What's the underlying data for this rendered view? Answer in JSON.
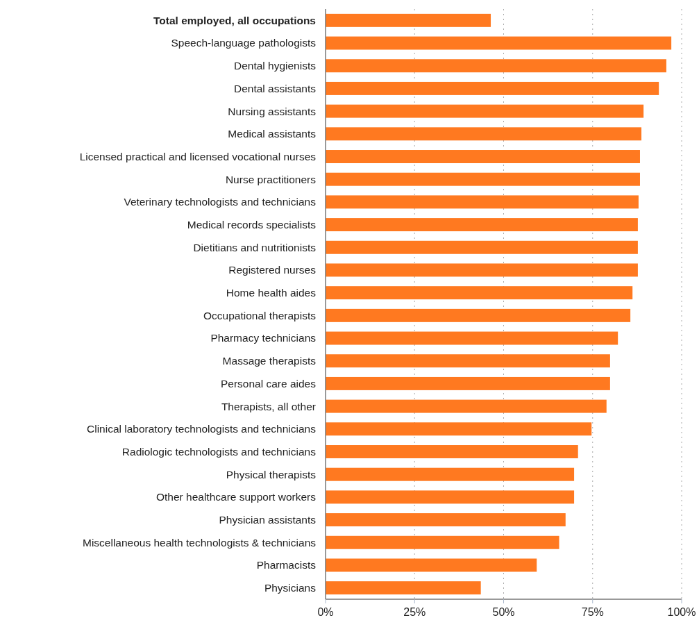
{
  "chart_data": {
    "type": "bar",
    "orientation": "horizontal",
    "categories": [
      "Total employed, all occupations",
      "Speech-language pathologists",
      "Dental hygienists",
      "Dental assistants",
      "Nursing assistants",
      "Medical assistants",
      "Licensed practical and licensed vocational nurses",
      "Nurse practitioners",
      "Veterinary technologists and technicians",
      "Medical records specialists",
      "Dietitians and nutritionists",
      "Registered nurses",
      "Home health aides",
      "Occupational therapists",
      "Pharmacy technicians",
      "Massage therapists",
      "Personal care aides",
      "Therapists, all other",
      "Clinical laboratory technologists and technicians",
      "Radiologic technologists and technicians",
      "Physical therapists",
      "Other healthcare support workers",
      "Physician assistants",
      "Miscellaneous health technologists & technicians",
      "Pharmacists",
      "Physicians"
    ],
    "values": [
      46.4,
      97.1,
      95.7,
      93.6,
      89.3,
      88.7,
      88.3,
      88.3,
      87.9,
      87.7,
      87.7,
      87.7,
      86.2,
      85.6,
      82.1,
      79.9,
      79.9,
      78.9,
      74.7,
      70.9,
      69.8,
      69.8,
      67.4,
      65.6,
      59.3,
      43.6
    ],
    "color": "#ff7920",
    "xlim": [
      0,
      100
    ],
    "xticks": [
      {
        "value": 0,
        "label": "0%"
      },
      {
        "value": 25,
        "label": "25%"
      },
      {
        "value": 50,
        "label": "50%"
      },
      {
        "value": 75,
        "label": "75%"
      },
      {
        "value": 100,
        "label": "100%"
      }
    ],
    "grid": "x"
  }
}
